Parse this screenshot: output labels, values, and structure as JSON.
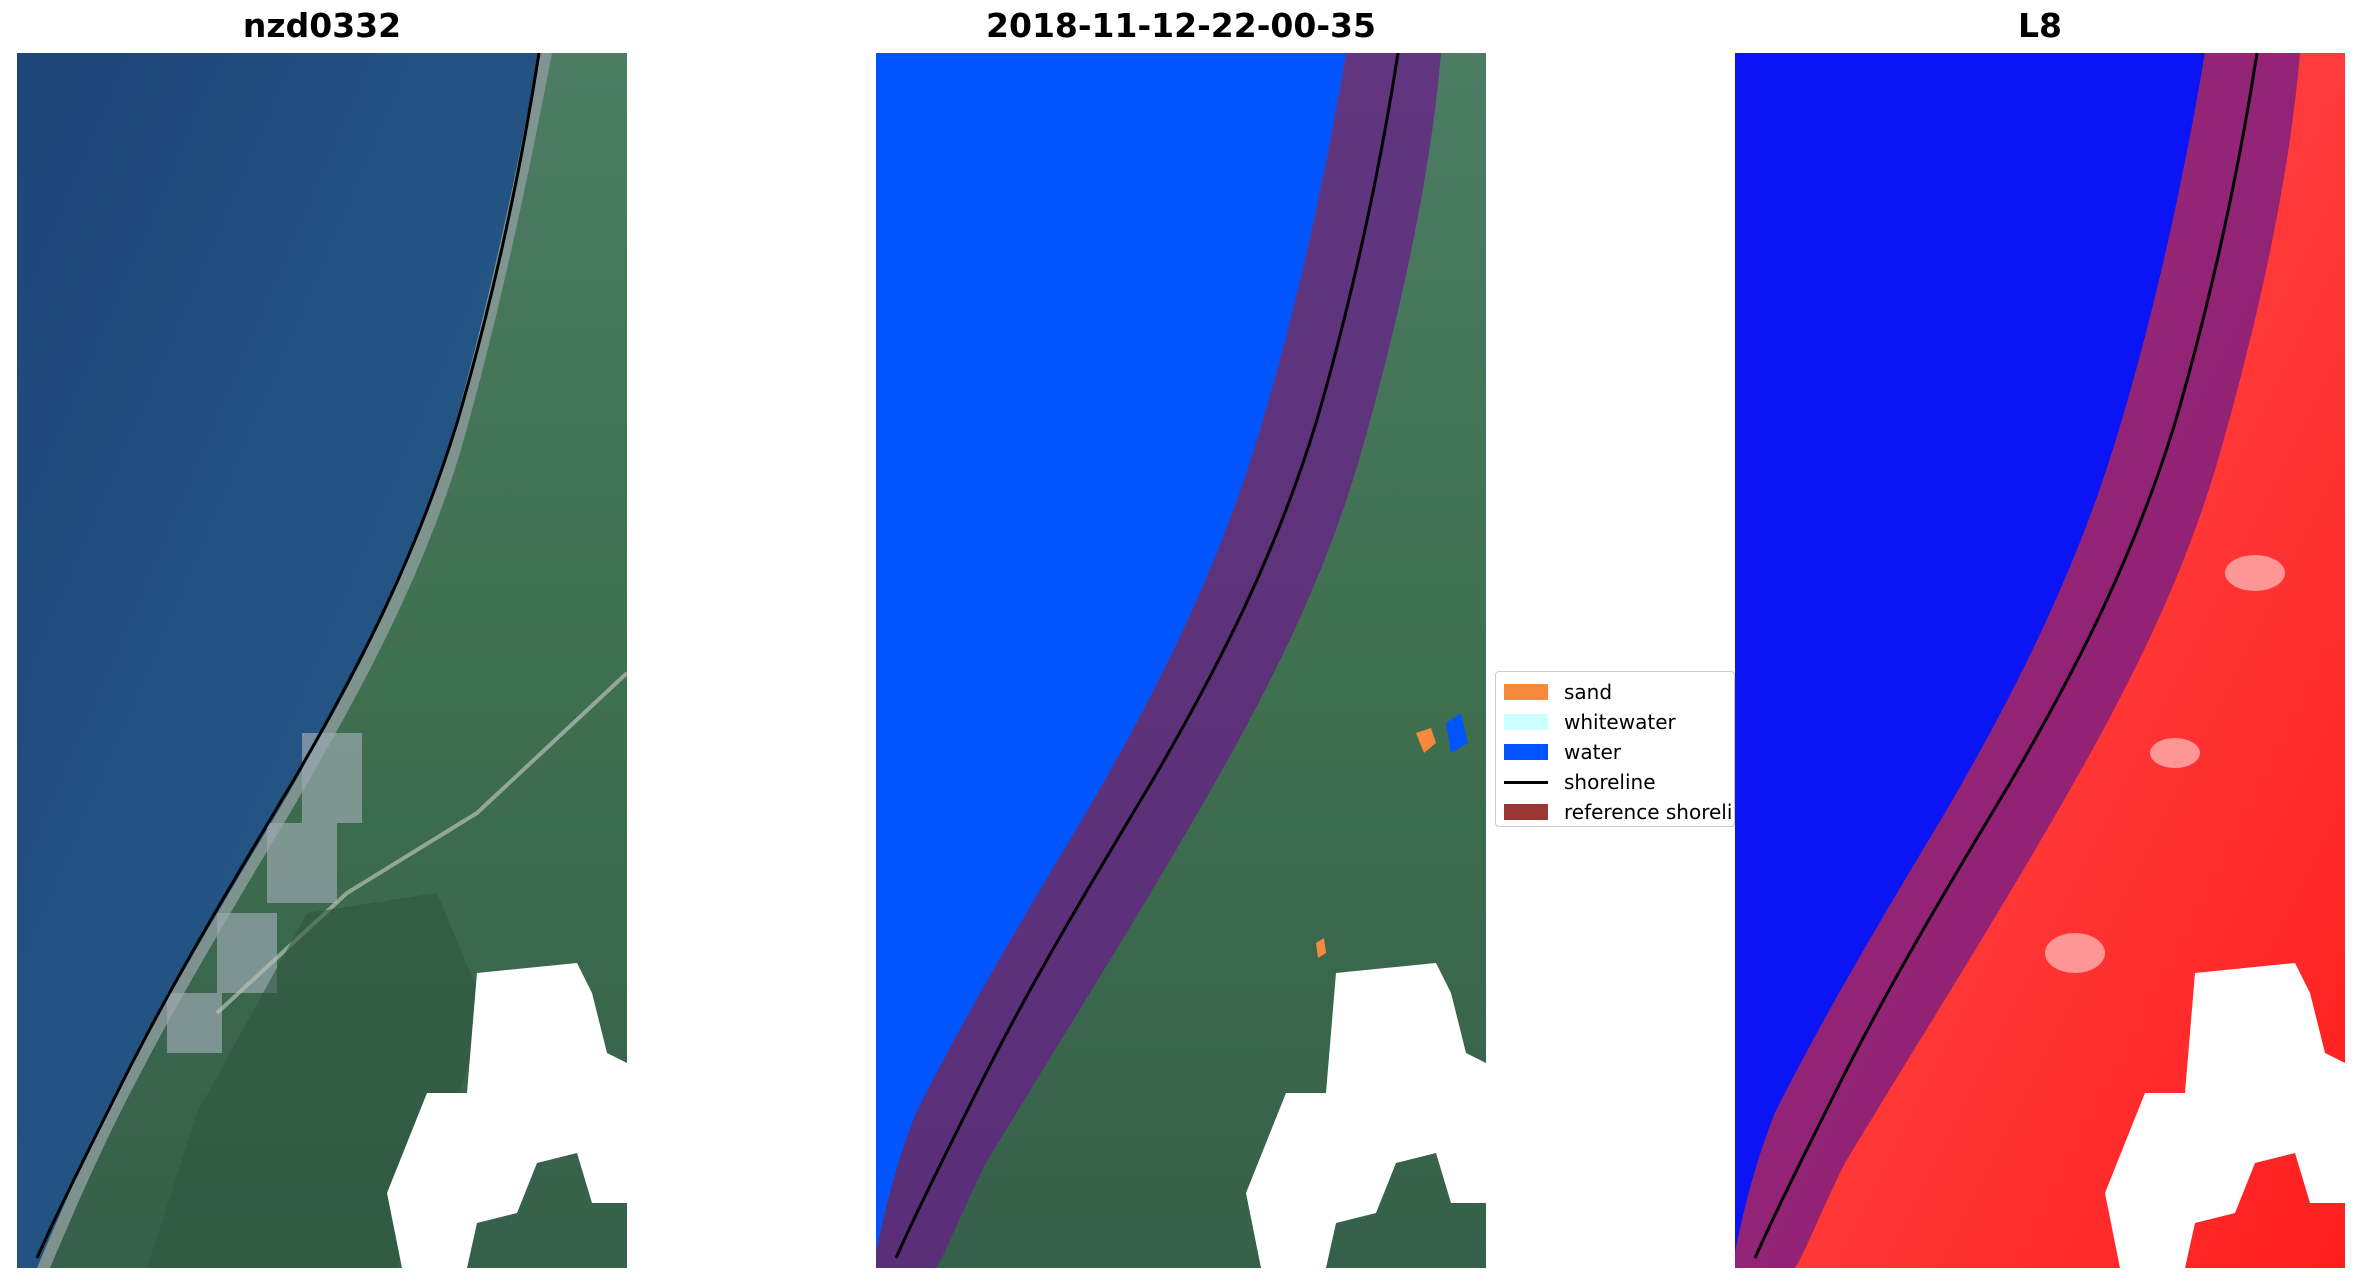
{
  "figure": {
    "panels": [
      {
        "title": "nzd0332",
        "content": "rgb-satellite-image"
      },
      {
        "title": "2018-11-12-22-00-35",
        "content": "classified-image"
      },
      {
        "title": "L8",
        "content": "water-index-image"
      }
    ]
  },
  "legend": {
    "items": [
      {
        "label": "sand",
        "color": "#f68a3c",
        "kind": "patch"
      },
      {
        "label": "whitewater",
        "color": "#ccffff",
        "kind": "patch"
      },
      {
        "label": "water",
        "color": "#0055ff",
        "kind": "patch"
      },
      {
        "label": "shoreline",
        "color": "#000000",
        "kind": "line"
      },
      {
        "label": "reference shoreline",
        "color": "#9a3634",
        "kind": "patch"
      }
    ]
  },
  "colors": {
    "sea_rgb": "#22507f",
    "land_rgb": "#3f6b55",
    "water_class": "#0055ff",
    "buffer_overlay": "#8b1f4e",
    "index_land": "#ff2a2a",
    "index_water": "#0a14f5"
  }
}
